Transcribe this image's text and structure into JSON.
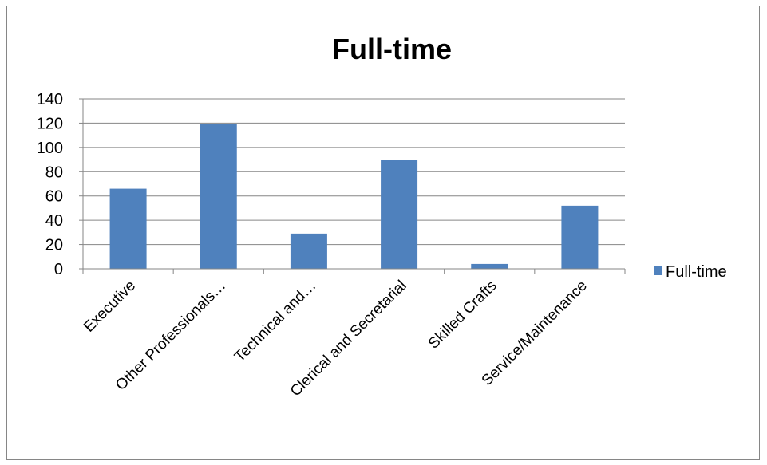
{
  "chart_data": {
    "type": "bar",
    "title": "Full-time",
    "categories": [
      "Executive",
      "Other Professionals…",
      "Technical and…",
      "Clerical and Secretarial",
      "Skilled Crafts",
      "Service/Maintenance"
    ],
    "series": [
      {
        "name": "Full-time",
        "values": [
          66,
          119,
          29,
          90,
          4,
          52
        ],
        "color": "#4F81BD"
      }
    ],
    "ylim": [
      0,
      140
    ],
    "yticks": [
      0,
      20,
      40,
      60,
      80,
      100,
      120,
      140
    ],
    "grid": true,
    "legend_position": "right"
  }
}
